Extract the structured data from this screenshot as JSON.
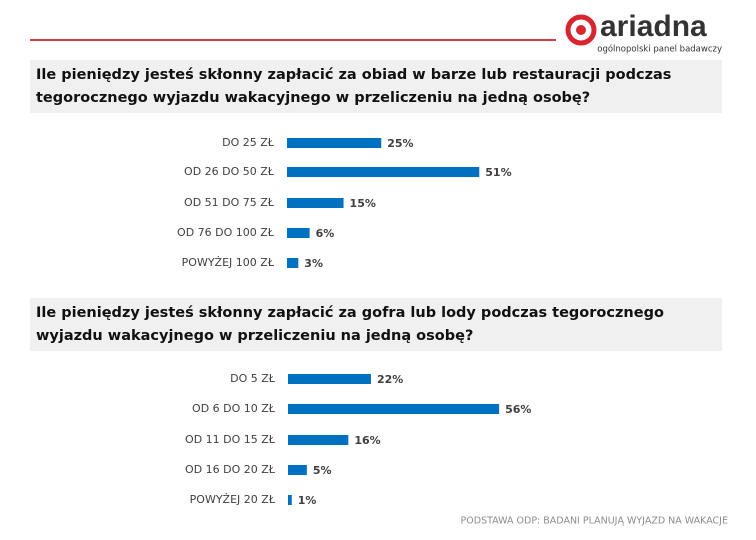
{
  "logo": {
    "name": "ariadna",
    "tagline": "ogólnopolski panel badawczy"
  },
  "footnote": "PODSTAWA ODP: BADANI PLANUJĄ WYJAZD NA WAKACJE",
  "chart_data": [
    {
      "type": "bar",
      "orientation": "horizontal",
      "color": "#0070c0",
      "title": "Ile pieniędzy jesteś skłonny zapłacić za obiad w barze lub restauracji podczas tegorocznego wyjazdu wakacyjnego w przeliczeniu na jedną osobę?",
      "categories": [
        "DO 25 ZŁ",
        "OD 26 DO 50 ZŁ",
        "OD 51 DO 75 ZŁ",
        "OD 76 DO 100 ZŁ",
        "POWYŻEJ 100 ZŁ"
      ],
      "values": [
        25,
        51,
        15,
        6,
        3
      ],
      "value_labels": [
        "25%",
        "51%",
        "15%",
        "6%",
        "3%"
      ]
    },
    {
      "type": "bar",
      "orientation": "horizontal",
      "color": "#0070c0",
      "title": "Ile pieniędzy jesteś skłonny zapłacić za gofra lub lody podczas tegorocznego wyjazdu wakacyjnego w przeliczeniu na jedną osobę?",
      "categories": [
        "DO 5 ZŁ",
        "OD 6 DO 10 ZŁ",
        "OD 11 DO 15 ZŁ",
        "OD 16 DO 20 ZŁ",
        "POWYŻEJ 20 ZŁ"
      ],
      "values": [
        22,
        56,
        16,
        5,
        1
      ],
      "value_labels": [
        "22%",
        "56%",
        "16%",
        "5%",
        "1%"
      ]
    }
  ]
}
